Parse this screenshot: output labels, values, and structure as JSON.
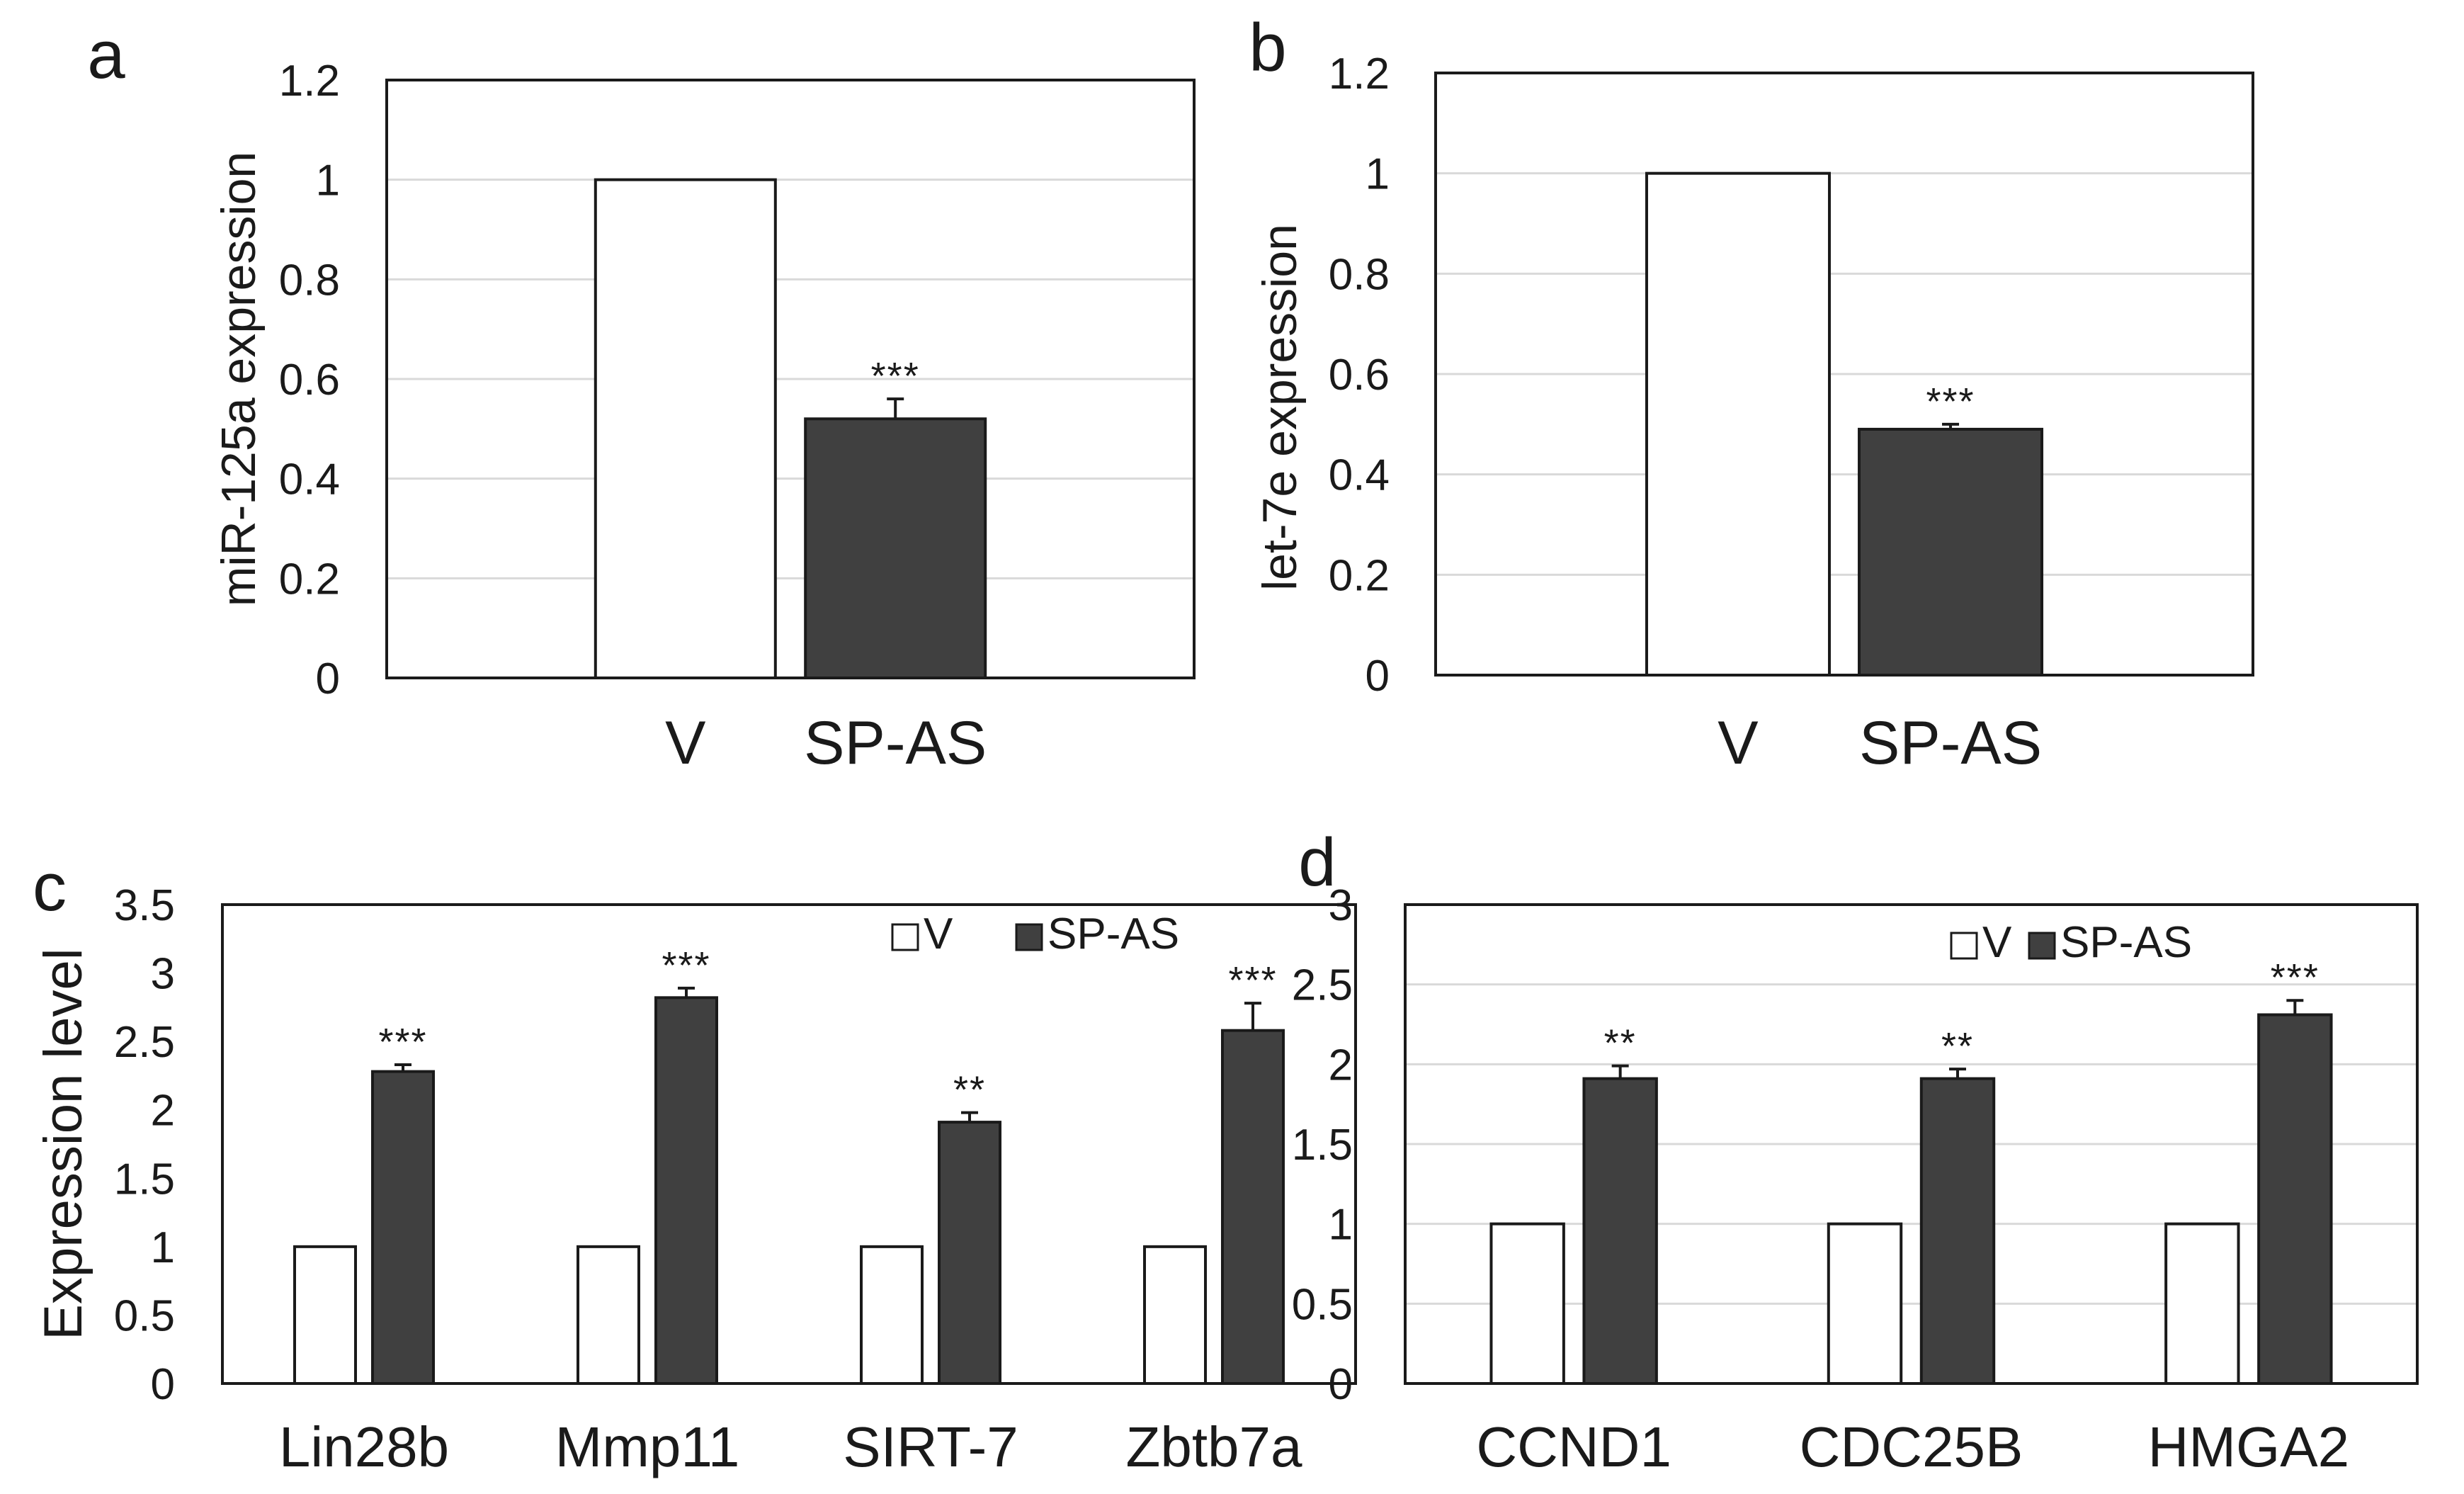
{
  "colors": {
    "v_fill": "#ffffff",
    "spas_fill": "#404040",
    "axis": "#1a1a1a",
    "grid": "#d9d9d9"
  },
  "chart_data": [
    {
      "panel": "a",
      "type": "bar",
      "categories": [
        "V",
        "SP-AS"
      ],
      "series": [
        {
          "values": [
            1.0,
            0.52
          ],
          "errors": [
            0,
            0.04
          ],
          "colors": [
            "#ffffff",
            "#404040"
          ]
        }
      ],
      "annotations": [
        "",
        "***"
      ],
      "ylabel": "miR-125a expression",
      "ylim": [
        0,
        1.2
      ],
      "yticks": [
        "0",
        "0.2",
        "0.4",
        "0.6",
        "0.8",
        "1",
        "1.2"
      ],
      "grid": true,
      "legend": null
    },
    {
      "panel": "b",
      "type": "bar",
      "categories": [
        "V",
        "SP-AS"
      ],
      "series": [
        {
          "values": [
            1.0,
            0.49
          ],
          "errors": [
            0,
            0.01
          ],
          "colors": [
            "#ffffff",
            "#404040"
          ]
        }
      ],
      "annotations": [
        "",
        "***"
      ],
      "ylabel": "let-7e expression",
      "ylim": [
        0,
        1.2
      ],
      "yticks": [
        "0",
        "0.2",
        "0.4",
        "0.6",
        "0.8",
        "1",
        "1.2"
      ],
      "grid": true,
      "legend": null
    },
    {
      "panel": "c",
      "type": "bar",
      "categories": [
        "Lin28b",
        "Mmp11",
        "SIRT-7",
        "Zbtb7a"
      ],
      "series": [
        {
          "name": "V",
          "values": [
            1.0,
            1.0,
            1.0,
            1.0
          ],
          "errors": [
            0,
            0,
            0,
            0
          ],
          "color": "#ffffff"
        },
        {
          "name": "SP-AS",
          "values": [
            2.28,
            2.82,
            1.91,
            2.58
          ],
          "errors": [
            0.05,
            0.07,
            0.07,
            0.2
          ],
          "color": "#404040"
        }
      ],
      "annotations": [
        "***",
        "***",
        "**",
        "***"
      ],
      "ylabel": "Expression level",
      "ylim": [
        0,
        3.5
      ],
      "yticks": [
        "0",
        "0.5",
        "1",
        "1.5",
        "2",
        "2.5",
        "3",
        "3.5"
      ],
      "grid": false,
      "legend": "top-right"
    },
    {
      "panel": "d",
      "type": "bar",
      "categories": [
        "CCND1",
        "CDC25B",
        "HMGA2"
      ],
      "series": [
        {
          "name": "V",
          "values": [
            1.0,
            1.0,
            1.0
          ],
          "errors": [
            0,
            0,
            0
          ],
          "color": "#ffffff"
        },
        {
          "name": "SP-AS",
          "values": [
            1.91,
            1.91,
            2.31
          ],
          "errors": [
            0.08,
            0.06,
            0.09
          ],
          "color": "#404040"
        }
      ],
      "annotations": [
        "**",
        "**",
        "***"
      ],
      "ylabel": "",
      "ylim": [
        0,
        3
      ],
      "yticks": [
        "0",
        "0.5",
        "1",
        "1.5",
        "2",
        "2.5",
        "3"
      ],
      "grid": true,
      "legend": "top-right"
    }
  ]
}
